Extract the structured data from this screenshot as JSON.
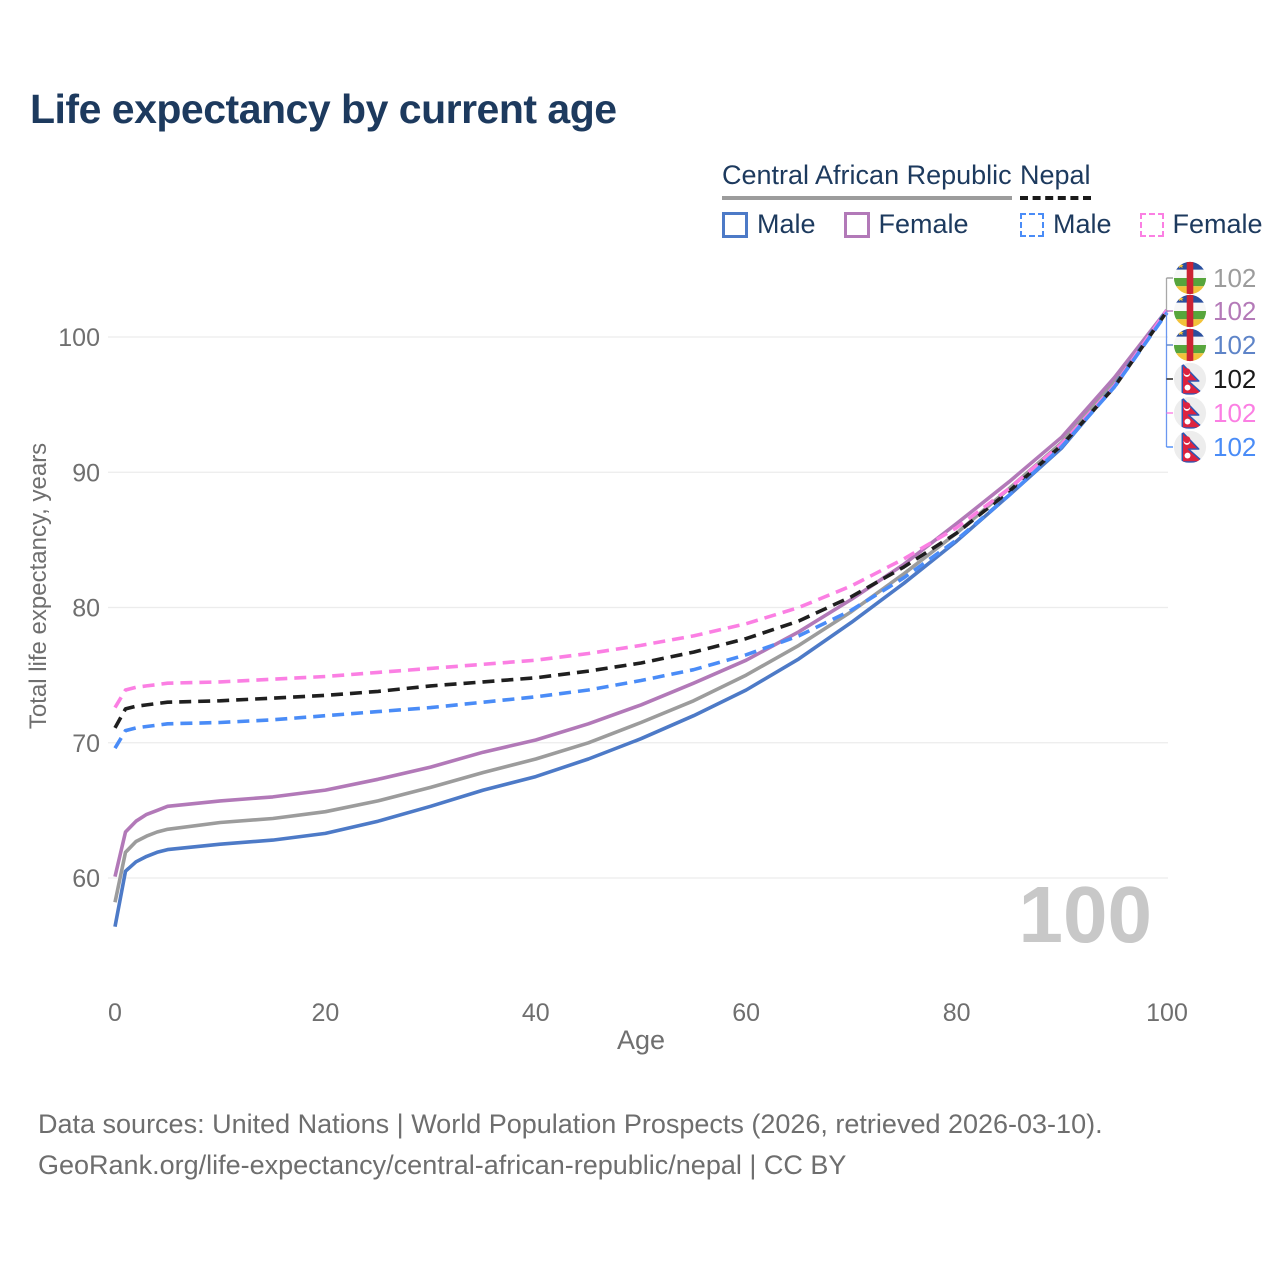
{
  "page": {
    "title": "Life expectancy by current age"
  },
  "legend": {
    "groups": [
      {
        "label": "Central African Republic",
        "line_style": "solid",
        "underline_color": "#9c9c9c",
        "items": [
          {
            "label": "Male",
            "color": "#4d7ac7",
            "dashed": false
          },
          {
            "label": "Female",
            "color": "#b279b8",
            "dashed": false
          }
        ]
      },
      {
        "label": "Nepal",
        "line_style": "dashed",
        "underline_color": "#1a1a1a",
        "items": [
          {
            "label": "Male",
            "color": "#4a8cf7",
            "dashed": true
          },
          {
            "label": "Female",
            "color": "#fb7fe3",
            "dashed": true
          }
        ]
      }
    ]
  },
  "chart_data": {
    "type": "line",
    "title": "Life expectancy by current age",
    "xlabel": "Age",
    "ylabel": "Total life expectancy, years",
    "xlim": [
      0,
      100
    ],
    "ylim": [
      55,
      104
    ],
    "x_ticks": [
      0,
      20,
      40,
      60,
      80,
      100
    ],
    "y_ticks": [
      60,
      70,
      80,
      90,
      100
    ],
    "grid": "horizontal",
    "legend_position": "top-right",
    "x": [
      0,
      1,
      2,
      3,
      4,
      5,
      10,
      15,
      20,
      25,
      30,
      35,
      40,
      45,
      50,
      55,
      60,
      65,
      70,
      75,
      80,
      85,
      90,
      95,
      100
    ],
    "series": [
      {
        "id": "car-combined",
        "country": "Central African Republic",
        "sex": "combined",
        "color": "#9c9c9c",
        "dashed": false,
        "flag": "car",
        "end_label": "102",
        "label_color": "#9c9c9c",
        "values": [
          58.2,
          61.9,
          62.7,
          63.1,
          63.4,
          63.6,
          64.1,
          64.4,
          64.9,
          65.7,
          66.7,
          67.8,
          68.8,
          70.0,
          71.5,
          73.1,
          75.0,
          77.2,
          79.7,
          82.5,
          85.5,
          88.8,
          92.2,
          96.7,
          102
        ]
      },
      {
        "id": "car-female",
        "country": "Central African Republic",
        "sex": "female",
        "color": "#b279b8",
        "dashed": false,
        "flag": "car",
        "end_label": "102",
        "label_color": "#b47ab8",
        "values": [
          60.1,
          63.4,
          64.2,
          64.7,
          65.0,
          65.3,
          65.7,
          66.0,
          66.5,
          67.3,
          68.2,
          69.3,
          70.2,
          71.4,
          72.8,
          74.4,
          76.1,
          78.2,
          80.6,
          83.2,
          86.2,
          89.3,
          92.6,
          97.0,
          102
        ]
      },
      {
        "id": "car-male",
        "country": "Central African Republic",
        "sex": "male",
        "color": "#4d7ac7",
        "dashed": false,
        "flag": "car",
        "end_label": "102",
        "label_color": "#5e84c8",
        "values": [
          56.4,
          60.5,
          61.2,
          61.6,
          61.9,
          62.1,
          62.5,
          62.8,
          63.3,
          64.2,
          65.3,
          66.5,
          67.5,
          68.8,
          70.3,
          72.0,
          73.9,
          76.2,
          78.9,
          81.8,
          84.9,
          88.3,
          91.8,
          96.4,
          102
        ]
      },
      {
        "id": "nepal-combined",
        "country": "Nepal",
        "sex": "combined",
        "color": "#1f1f1f",
        "dashed": true,
        "flag": "nepal",
        "end_label": "102",
        "label_color": "#1a1a1a",
        "values": [
          71.1,
          72.5,
          72.7,
          72.8,
          72.9,
          73.0,
          73.1,
          73.3,
          73.5,
          73.8,
          74.2,
          74.5,
          74.8,
          75.3,
          75.9,
          76.7,
          77.7,
          79.0,
          80.8,
          83.0,
          85.5,
          88.6,
          92.0,
          96.3,
          101.9
        ]
      },
      {
        "id": "nepal-female",
        "country": "Nepal",
        "sex": "female",
        "color": "#fb7fe3",
        "dashed": true,
        "flag": "nepal",
        "end_label": "102",
        "label_color": "#fb7fe3",
        "values": [
          72.6,
          73.9,
          74.1,
          74.2,
          74.3,
          74.4,
          74.5,
          74.7,
          74.9,
          75.2,
          75.5,
          75.8,
          76.1,
          76.6,
          77.2,
          77.9,
          78.8,
          80.0,
          81.6,
          83.6,
          85.9,
          88.8,
          92.1,
          96.4,
          102
        ]
      },
      {
        "id": "nepal-male",
        "country": "Nepal",
        "sex": "male",
        "color": "#4a8cf7",
        "dashed": true,
        "flag": "nepal",
        "end_label": "102",
        "label_color": "#4a8cf7",
        "values": [
          69.6,
          70.9,
          71.1,
          71.2,
          71.3,
          71.4,
          71.5,
          71.7,
          72.0,
          72.3,
          72.6,
          73.0,
          73.4,
          73.9,
          74.6,
          75.4,
          76.5,
          77.9,
          79.8,
          82.2,
          85.0,
          88.3,
          91.9,
          96.3,
          101.8
        ]
      }
    ]
  },
  "annotations": {
    "age_counter": "100"
  },
  "footer": {
    "line1": "Data sources: United Nations | World Population Prospects (2026, retrieved 2026-03-10).",
    "line2": "GeoRank.org/life-expectancy/central-african-republic/nepal | CC BY"
  }
}
